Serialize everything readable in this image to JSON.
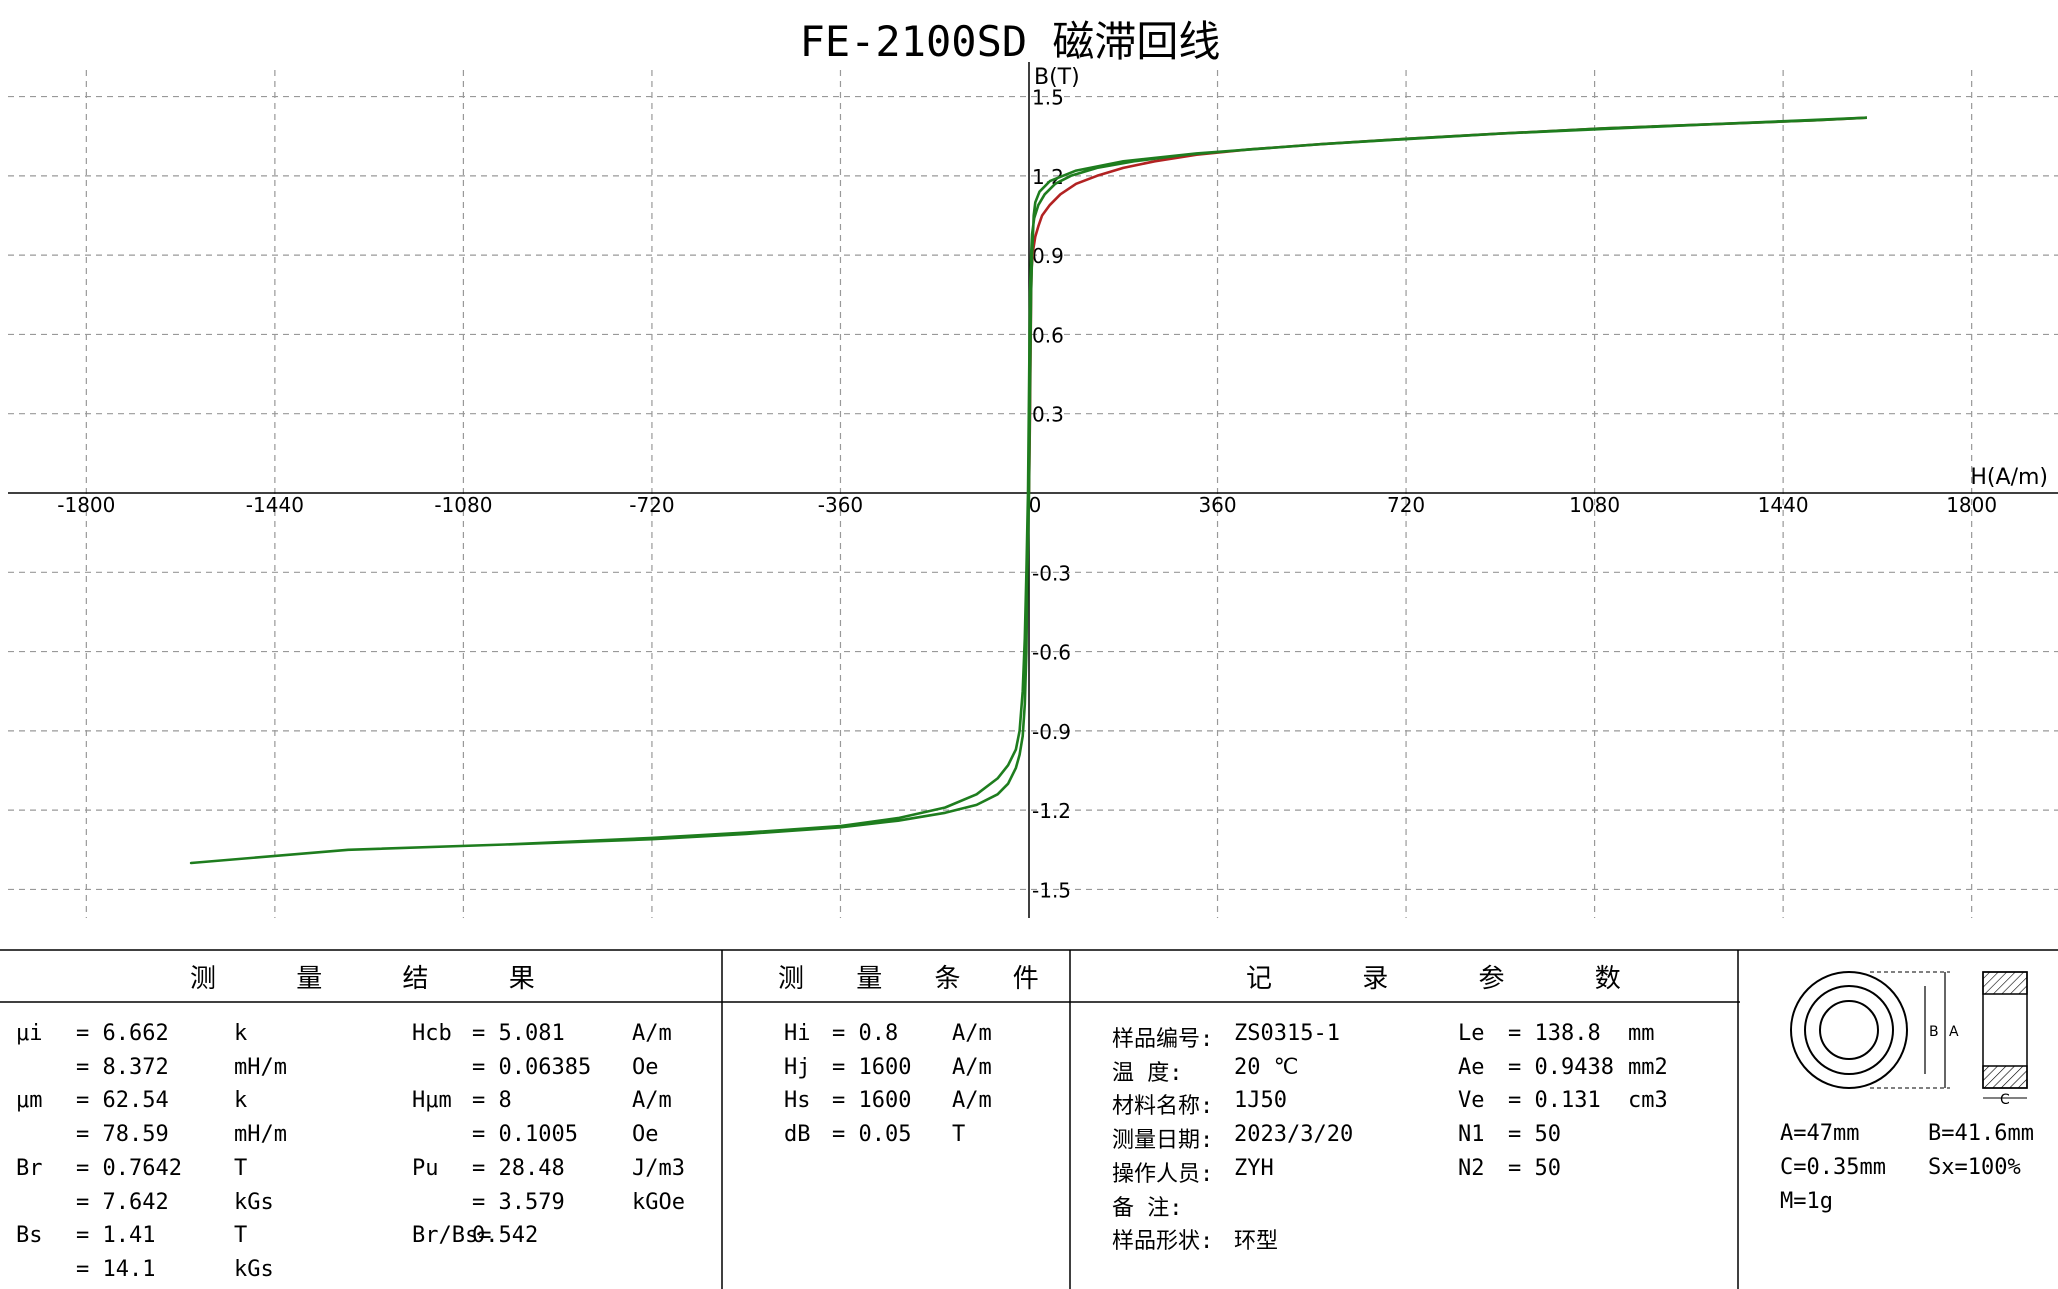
{
  "chart_data": {
    "type": "line",
    "title": "FE-2100SD 磁滞回线",
    "xlabel": "H(A/m)",
    "ylabel": "B(T)",
    "xlim": [
      -1950,
      1950
    ],
    "ylim": [
      -1.6,
      1.6
    ],
    "x_ticks": [
      -1800,
      -1440,
      -1080,
      -720,
      -360,
      0,
      360,
      720,
      1080,
      1440,
      1800
    ],
    "y_ticks": [
      1.5,
      1.2,
      0.9,
      0.6,
      0.3,
      0,
      -0.3,
      -0.6,
      -0.9,
      -1.2,
      -1.5
    ],
    "x_tick_labels": [
      "-1800",
      "-1440",
      "-1080",
      "-720",
      "-360",
      "0",
      "360",
      "720",
      "1080",
      "1440",
      "1800"
    ],
    "y_tick_labels": [
      "1.5",
      "1.2",
      "0.9",
      "0.6",
      "0.3",
      "0",
      "-0.3",
      "-0.6",
      "-0.9",
      "-1.2",
      "-1.5"
    ],
    "grid": true,
    "series": [
      {
        "color": "#b22222",
        "x": [
          0,
          2,
          3,
          4,
          5,
          8,
          12,
          18,
          25,
          40,
          60,
          90,
          130,
          180,
          240,
          320,
          420,
          560,
          720,
          900,
          1100,
          1300,
          1500,
          1600
        ],
        "y": [
          0,
          0.3,
          0.55,
          0.75,
          0.85,
          0.92,
          0.97,
          1.01,
          1.05,
          1.09,
          1.13,
          1.17,
          1.2,
          1.23,
          1.255,
          1.28,
          1.3,
          1.32,
          1.34,
          1.36,
          1.38,
          1.395,
          1.41,
          1.42
        ]
      },
      {
        "color": "#1e7d1e",
        "x": [
          1600,
          1300,
          900,
          560,
          320,
          180,
          90,
          40,
          20,
          12,
          9,
          8,
          6,
          4,
          3,
          0,
          -3,
          -5,
          -8,
          -12,
          -18,
          -25,
          -40,
          -60,
          -100,
          -160,
          -250,
          -360,
          -540,
          -720,
          -1000,
          -1300,
          -1600,
          -1300,
          -1000,
          -720,
          -540,
          -360,
          -250,
          -160,
          -100,
          -60,
          -40,
          -25,
          -18,
          -12,
          -8,
          -5,
          -2,
          2,
          4,
          6,
          10,
          18,
          30,
          50,
          80,
          130,
          200,
          300,
          420,
          560,
          720,
          900,
          1100,
          1300,
          1500,
          1600
        ],
        "y": [
          1.42,
          1.395,
          1.36,
          1.32,
          1.285,
          1.255,
          1.22,
          1.18,
          1.14,
          1.1,
          1.05,
          1.0,
          0.9,
          0.76,
          0.6,
          0.0,
          -0.3,
          -0.6,
          -0.8,
          -0.92,
          -0.99,
          -1.04,
          -1.1,
          -1.14,
          -1.18,
          -1.21,
          -1.24,
          -1.265,
          -1.29,
          -1.31,
          -1.33,
          -1.35,
          -1.4,
          -1.35,
          -1.33,
          -1.305,
          -1.285,
          -1.26,
          -1.23,
          -1.19,
          -1.14,
          -1.08,
          -1.03,
          -0.97,
          -0.9,
          -0.75,
          -0.55,
          -0.3,
          0.0,
          0.76,
          0.9,
          0.98,
          1.04,
          1.09,
          1.13,
          1.17,
          1.2,
          1.23,
          1.255,
          1.28,
          1.3,
          1.32,
          1.34,
          1.36,
          1.38,
          1.395,
          1.41,
          1.42
        ]
      }
    ]
  },
  "results": {
    "header": "测 量 结 果",
    "rows": [
      [
        "μi",
        "= 6.662",
        "k",
        "Hcb",
        "= 5.081",
        "A/m"
      ],
      [
        "",
        "= 8.372",
        "mH/m",
        "",
        "= 0.06385",
        "Oe"
      ],
      [
        "μm",
        "= 62.54",
        "k",
        "Hμm",
        "= 8",
        "A/m"
      ],
      [
        "",
        "= 78.59",
        "mH/m",
        "",
        "= 0.1005",
        "Oe"
      ],
      [
        "Br",
        "= 0.7642",
        "T",
        "Pu",
        "= 28.48",
        "J/m3"
      ],
      [
        "",
        "= 7.642",
        "kGs",
        "",
        "= 3.579",
        "kGOe"
      ],
      [
        "Bs",
        "= 1.41",
        "T",
        "Br/Bs=",
        "0.542",
        ""
      ],
      [
        "",
        "= 14.1",
        "kGs",
        "",
        "",
        ""
      ]
    ]
  },
  "conditions": {
    "header": "测 量 条 件",
    "rows": [
      [
        "Hi",
        "= 0.8",
        "A/m"
      ],
      [
        "Hj",
        "= 1600",
        "A/m"
      ],
      [
        "Hs",
        "= 1600",
        "A/m"
      ],
      [
        "dB",
        "= 0.05",
        "T"
      ]
    ]
  },
  "record": {
    "header": "记 录 参 数",
    "rows": [
      [
        "样品编号:",
        "ZS0315-1"
      ],
      [
        "温 度:",
        "20 ℃"
      ],
      [
        "材料名称:",
        "1J50"
      ],
      [
        "测量日期:",
        "2023/3/20"
      ],
      [
        "操作人员:",
        "ZYH"
      ],
      [
        "备 注:",
        ""
      ],
      [
        "样品形状:",
        "环型"
      ]
    ],
    "params": [
      [
        "Le",
        "= 138.8",
        "mm"
      ],
      [
        "Ae",
        "= 0.9438",
        "mm2"
      ],
      [
        "Ve",
        "= 0.131",
        "cm3"
      ],
      [
        "N1",
        "= 50",
        ""
      ],
      [
        "N2",
        "= 50",
        ""
      ]
    ]
  },
  "shape": {
    "label_b": "B",
    "label_a": "A",
    "label_c": "C",
    "dims": [
      "A=47mm",
      "B=41.6mm",
      "C=0.35mm",
      "Sx=100%",
      "M=1g"
    ]
  }
}
